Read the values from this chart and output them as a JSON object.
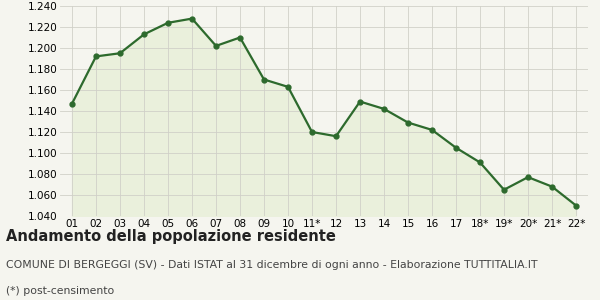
{
  "x_labels": [
    "01",
    "02",
    "03",
    "04",
    "05",
    "06",
    "07",
    "08",
    "09",
    "10",
    "11*",
    "12",
    "13",
    "14",
    "15",
    "16",
    "17",
    "18*",
    "19*",
    "20*",
    "21*",
    "22*"
  ],
  "y_values": [
    1147,
    1192,
    1195,
    1213,
    1224,
    1228,
    1202,
    1210,
    1170,
    1163,
    1120,
    1116,
    1149,
    1142,
    1129,
    1122,
    1105,
    1091,
    1065,
    1077,
    1068,
    1050
  ],
  "ylim": [
    1040,
    1240
  ],
  "yticks": [
    1040,
    1060,
    1080,
    1100,
    1120,
    1140,
    1160,
    1180,
    1200,
    1220,
    1240
  ],
  "line_color": "#2d6a2d",
  "fill_color": "#eaf0dc",
  "marker": "o",
  "marker_size": 3.5,
  "line_width": 1.6,
  "bg_color": "#f5f5ef",
  "grid_color": "#d0d0c8",
  "title": "Andamento della popolazione residente",
  "subtitle": "COMUNE DI BERGEGGI (SV) - Dati ISTAT al 31 dicembre di ogni anno - Elaborazione TUTTITALIA.IT",
  "footnote": "(*) post-censimento",
  "title_fontsize": 10.5,
  "subtitle_fontsize": 7.8,
  "footnote_fontsize": 7.8,
  "tick_labelsize": 7.5
}
